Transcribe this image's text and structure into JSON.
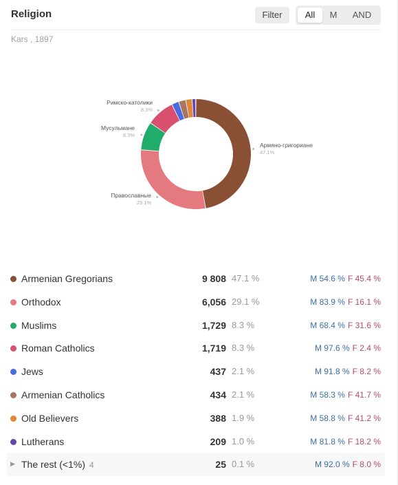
{
  "header": {
    "title": "Religion",
    "filter_label": "Filter",
    "segments": [
      "All",
      "M",
      "AND"
    ],
    "active_segment": "All"
  },
  "subtitle": "Kars , 1897",
  "chart_data": {
    "type": "pie",
    "donut": true,
    "slices": [
      {
        "label": "Армяно-григориане",
        "pct": "47.1%",
        "value": 9808,
        "color": "#8a5036",
        "show_label": true
      },
      {
        "label": "Православные",
        "pct": "29.1%",
        "value": 6056,
        "color": "#e47a80",
        "show_label": true
      },
      {
        "label": "Мусульмане",
        "pct": "8.3%",
        "value": 1729,
        "color": "#22ac6c",
        "show_label": true
      },
      {
        "label": "Римско-католики",
        "pct": "8.3%",
        "value": 1719,
        "color": "#d9506e",
        "show_label": true
      },
      {
        "label": "",
        "pct": "",
        "value": 437,
        "color": "#4b6be0",
        "show_label": false
      },
      {
        "label": "",
        "pct": "",
        "value": 434,
        "color": "#a87560",
        "show_label": false
      },
      {
        "label": "",
        "pct": "",
        "value": 388,
        "color": "#e0883a",
        "show_label": false
      },
      {
        "label": "",
        "pct": "",
        "value": 209,
        "color": "#6448b0",
        "show_label": false
      },
      {
        "label": "",
        "pct": "",
        "value": 25,
        "color": "#cfcfcf",
        "show_label": false
      }
    ]
  },
  "rows": [
    {
      "name": "Armenian Gregorians",
      "count": "9 808",
      "pct": "47.1 %",
      "m": "M 54.6 %",
      "f": "F 45.4 %",
      "color": "#8a5036"
    },
    {
      "name": "Orthodox",
      "count": "6,056",
      "pct": "29.1 %",
      "m": "M 83.9 %",
      "f": "F 16.1 %",
      "color": "#e47a80"
    },
    {
      "name": "Muslims",
      "count": "1,729",
      "pct": "8.3 %",
      "m": "M 68.4 %",
      "f": "F 31.6 %",
      "color": "#22ac6c"
    },
    {
      "name": "Roman Catholics",
      "count": "1,719",
      "pct": "8.3 %",
      "m": "M 97.6 %",
      "f": "F 2.4 %",
      "color": "#d9506e"
    },
    {
      "name": "Jews",
      "count": "437",
      "pct": "2.1 %",
      "m": "M 91.8 %",
      "f": "F 8.2 %",
      "color": "#4b6be0"
    },
    {
      "name": "Armenian Catholics",
      "count": "434",
      "pct": "2.1 %",
      "m": "M 58.3 %",
      "f": "F 41.7 %",
      "color": "#a87560"
    },
    {
      "name": "Old Believers",
      "count": "388",
      "pct": "1.9 %",
      "m": "M 58.8 %",
      "f": "F 41.2 %",
      "color": "#e0883a"
    },
    {
      "name": "Lutherans",
      "count": "209",
      "pct": "1.0 %",
      "m": "M 81.8 %",
      "f": "F 18.2 %",
      "color": "#6448b0"
    }
  ],
  "rest": {
    "name": "The rest (<1%)",
    "extra": "4",
    "count": "25",
    "pct": "0.1 %",
    "m": "M 92.0 %",
    "f": "F 8.0 %"
  }
}
